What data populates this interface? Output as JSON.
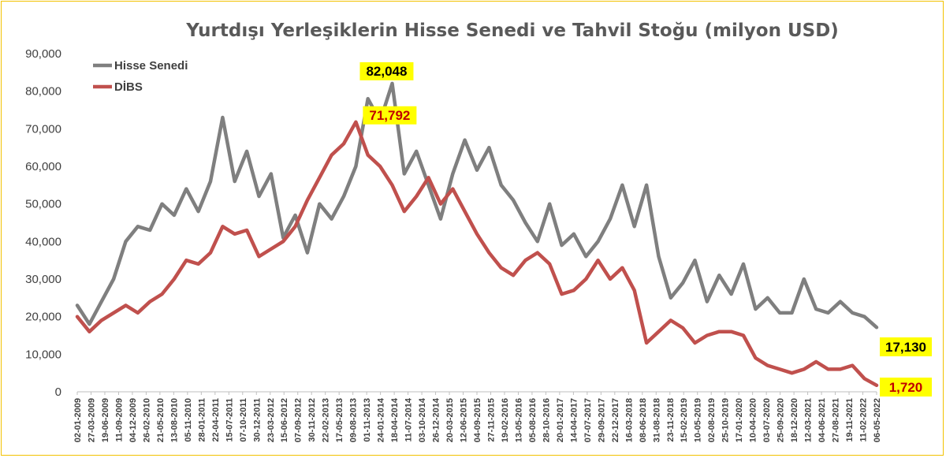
{
  "chart_data": {
    "type": "line",
    "title": "Yurtdışı Yerleşiklerin Hisse Senedi ve Tahvil Stoğu (milyon USD)",
    "xlabel": "",
    "ylabel": "",
    "ylim": [
      0,
      90000
    ],
    "y_ticks": [
      "0",
      "10,000",
      "20,000",
      "30,000",
      "40,000",
      "50,000",
      "60,000",
      "70,000",
      "80,000",
      "90,000"
    ],
    "x_ticks": [
      "02-01-2009",
      "27-03-2009",
      "19-06-2009",
      "11-09-2009",
      "04-12-2009",
      "26-02-2010",
      "21-05-2010",
      "13-08-2010",
      "05-11-2010",
      "28-01-2011",
      "22-04-2011",
      "15-07-2011",
      "07-10-2011",
      "30-12-2011",
      "23-03-2012",
      "15-06-2012",
      "07-09-2012",
      "30-11-2012",
      "22-02-2013",
      "17-05-2013",
      "09-08-2013",
      "01-11-2013",
      "24-01-2014",
      "18-04-2014",
      "11-07-2014",
      "03-10-2014",
      "26-12-2014",
      "20-03-2015",
      "12-06-2015",
      "04-09-2015",
      "27-11-2015",
      "19-02-2016",
      "13-05-2016",
      "05-08-2016",
      "28-10-2016",
      "20-01-2017",
      "14-04-2017",
      "07-07-2017",
      "29-09-2017",
      "22-12-2017",
      "16-03-2018",
      "08-06-2018",
      "31-08-2018",
      "23-11-2018",
      "15-02-2019",
      "10-05-2019",
      "02-08-2019",
      "25-10-2019",
      "17-01-2020",
      "10-04-2020",
      "03-07-2020",
      "25-09-2020",
      "18-12-2020",
      "12-03-2021",
      "04-06-2021",
      "27-08-2021",
      "19-11-2021",
      "11-02-2022",
      "06-05-2022"
    ],
    "legend_position": "top-left",
    "grid": false,
    "series": [
      {
        "name": "Hisse Senedi",
        "color": "#7f7f7f",
        "values": [
          23000,
          18000,
          24000,
          30000,
          40000,
          44000,
          43000,
          50000,
          47000,
          54000,
          48000,
          56000,
          73000,
          56000,
          64000,
          52000,
          58000,
          41000,
          47000,
          37000,
          50000,
          46000,
          52000,
          60000,
          78000,
          72000,
          82048,
          58000,
          64000,
          55000,
          46000,
          58000,
          67000,
          59000,
          65000,
          55000,
          51000,
          45000,
          40000,
          50000,
          39000,
          42000,
          36000,
          40000,
          46000,
          55000,
          44000,
          55000,
          36000,
          25000,
          29000,
          35000,
          24000,
          31000,
          26000,
          34000,
          22000,
          25000,
          21000,
          21000,
          30000,
          22000,
          21000,
          24000,
          21000,
          20000,
          17130
        ],
        "annotation": {
          "text": "82,048",
          "x_index": 26,
          "value": 82048
        },
        "end_label": "17,130"
      },
      {
        "name": "DİBS",
        "color": "#c0504d",
        "values": [
          20000,
          16000,
          19000,
          21000,
          23000,
          21000,
          24000,
          26000,
          30000,
          35000,
          34000,
          37000,
          44000,
          42000,
          43000,
          36000,
          38000,
          40000,
          44000,
          51000,
          57000,
          63000,
          66000,
          71792,
          63000,
          60000,
          55000,
          48000,
          52000,
          57000,
          50000,
          54000,
          48000,
          42000,
          37000,
          33000,
          31000,
          35000,
          37000,
          34000,
          26000,
          27000,
          30000,
          35000,
          30000,
          33000,
          27000,
          13000,
          16000,
          19000,
          17000,
          13000,
          15000,
          16000,
          16000,
          15000,
          9000,
          7000,
          6000,
          5000,
          6000,
          8000,
          6000,
          6000,
          7000,
          3500,
          1720
        ],
        "annotation": {
          "text": "71,792",
          "x_index": 23,
          "value": 71792
        },
        "end_label": "1,720"
      }
    ]
  }
}
